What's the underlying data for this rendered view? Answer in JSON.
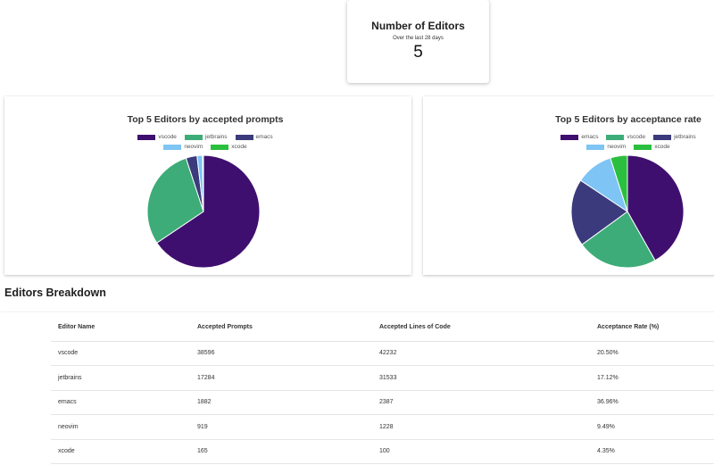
{
  "summary": {
    "title": "Number of Editors",
    "subtitle": "Over the last 28 days",
    "value": "5"
  },
  "section_title": "Editors Breakdown",
  "chart_data": [
    {
      "type": "pie",
      "title": "Top 5 Editors by accepted prompts",
      "legend": "top",
      "categories": [
        "vscode",
        "jetbrains",
        "emacs",
        "neovim",
        "xcode"
      ],
      "values": [
        38596,
        17284,
        1882,
        919,
        165
      ],
      "colors": [
        "#3f0f6f",
        "#3dac78",
        "#3a3a7c",
        "#7ec4f4",
        "#2bbf3f"
      ]
    },
    {
      "type": "pie",
      "title": "Top 5 Editors by acceptance rate",
      "legend": "top",
      "categories": [
        "emacs",
        "vscode",
        "jetbrains",
        "neovim",
        "xcode"
      ],
      "values": [
        36.96,
        20.5,
        17.12,
        9.49,
        4.35
      ],
      "colors": [
        "#3f0f6f",
        "#3dac78",
        "#3a3a7c",
        "#7ec4f4",
        "#2bbf3f"
      ]
    }
  ],
  "table": {
    "headers": [
      "Editor Name",
      "Accepted Prompts",
      "Accepted Lines of Code",
      "Acceptance Rate (%)"
    ],
    "rows": [
      [
        "vscode",
        "38596",
        "42232",
        "20.50%"
      ],
      [
        "jetbrains",
        "17284",
        "31533",
        "17.12%"
      ],
      [
        "emacs",
        "1882",
        "2387",
        "36.96%"
      ],
      [
        "neovim",
        "919",
        "1228",
        "9.49%"
      ],
      [
        "xcode",
        "165",
        "100",
        "4.35%"
      ]
    ]
  }
}
